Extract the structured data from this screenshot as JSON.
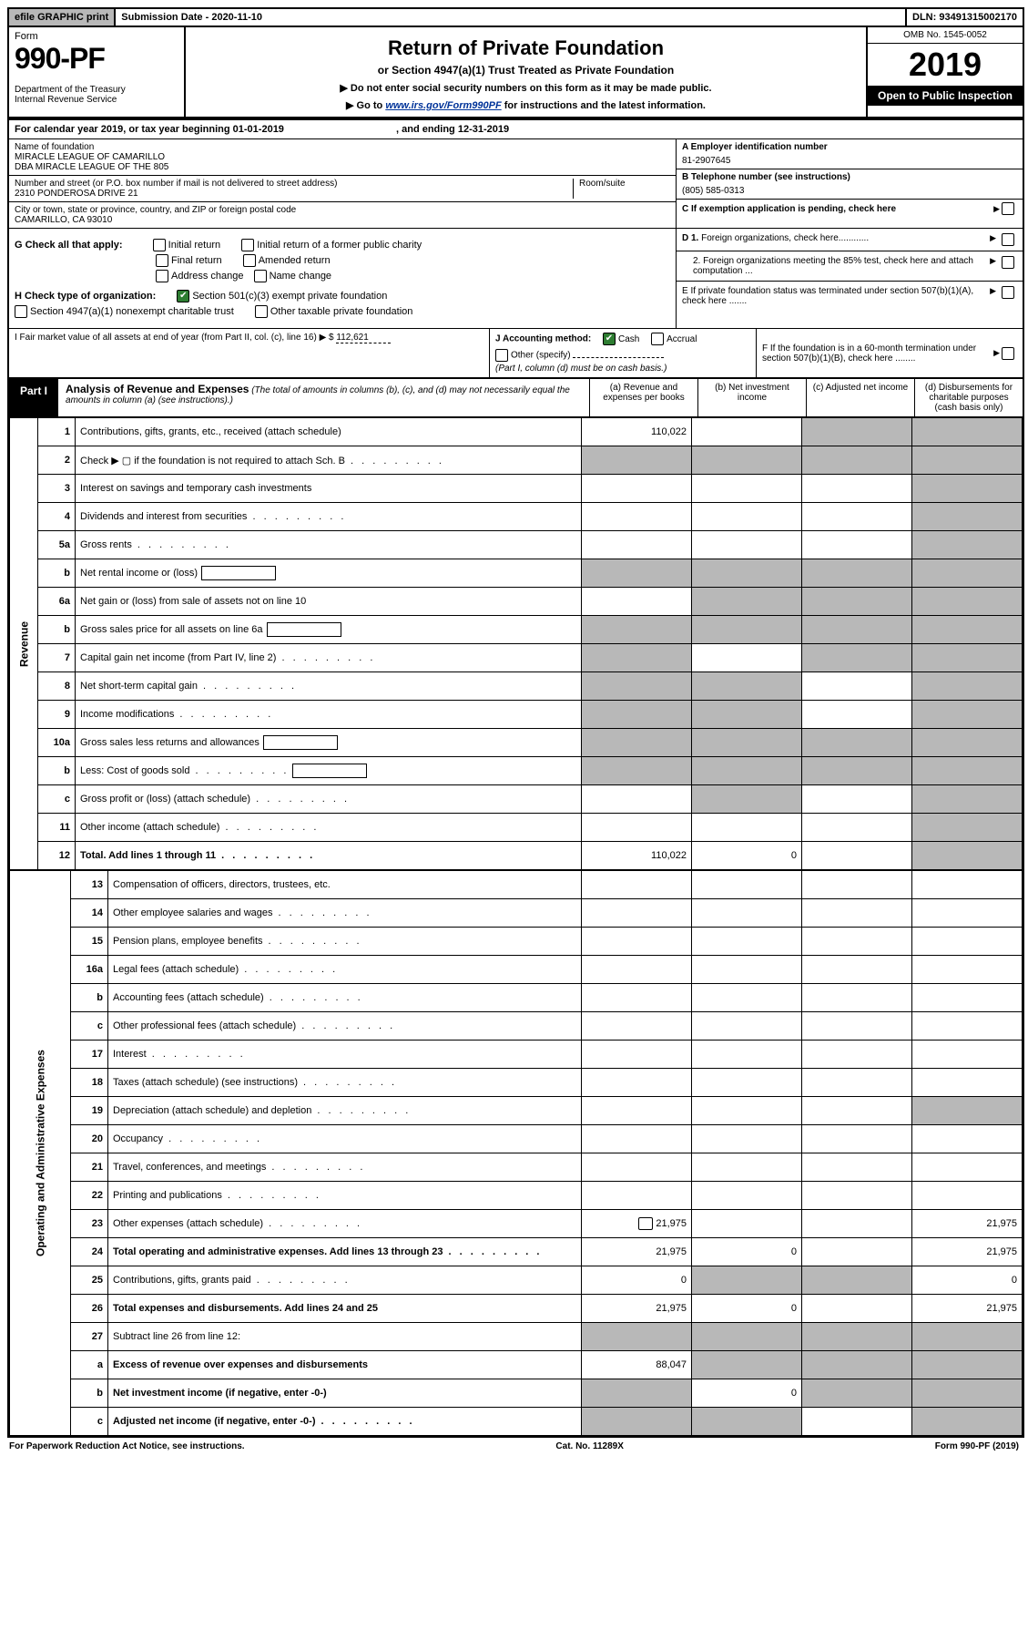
{
  "topbar": {
    "efile": "efile GRAPHIC print",
    "subdate_label": "Submission Date - ",
    "subdate": "2020-11-10",
    "dln_label": "DLN: ",
    "dln": "93491315002170"
  },
  "header": {
    "form_word": "Form",
    "form_number": "990-PF",
    "dept": "Department of the Treasury\nInternal Revenue Service",
    "title": "Return of Private Foundation",
    "subtitle": "or Section 4947(a)(1) Trust Treated as Private Foundation",
    "note1": "▶ Do not enter social security numbers on this form as it may be made public.",
    "note2_pre": "▶ Go to ",
    "note2_link": "www.irs.gov/Form990PF",
    "note2_post": " for instructions and the latest information.",
    "omb": "OMB No. 1545-0052",
    "year": "2019",
    "open": "Open to Public Inspection"
  },
  "cal": {
    "text_a": "For calendar year 2019, or tax year beginning ",
    "begin": "01-01-2019",
    "text_b": ", and ending ",
    "end": "12-31-2019"
  },
  "info": {
    "name_lbl": "Name of foundation",
    "name1": "MIRACLE LEAGUE OF CAMARILLO",
    "name2": "DBA MIRACLE LEAGUE OF THE 805",
    "addr_lbl": "Number and street (or P.O. box number if mail is not delivered to street address)",
    "addr": "2310 PONDEROSA DRIVE 21",
    "room_lbl": "Room/suite",
    "city_lbl": "City or town, state or province, country, and ZIP or foreign postal code",
    "city": "CAMARILLO, CA  93010",
    "ein_lbl": "A Employer identification number",
    "ein": "81-2907645",
    "tel_lbl": "B Telephone number (see instructions)",
    "tel": "(805) 585-0313",
    "c_lbl": "C If exemption application is pending, check here"
  },
  "G": {
    "label": "G Check all that apply:",
    "opts": [
      "Initial return",
      "Initial return of a former public charity",
      "Final return",
      "Amended return",
      "Address change",
      "Name change"
    ]
  },
  "H": {
    "label": "H Check type of organization:",
    "opt1": "Section 501(c)(3) exempt private foundation",
    "opt2": "Section 4947(a)(1) nonexempt charitable trust",
    "opt3": "Other taxable private foundation"
  },
  "D": {
    "d1": "D 1. Foreign organizations, check here............",
    "d2": "2. Foreign organizations meeting the 85% test, check here and attach computation ..."
  },
  "E": "E  If private foundation status was terminated under section 507(b)(1)(A), check here .......",
  "F": "F  If the foundation is in a 60-month termination under section 507(b)(1)(B), check here ........",
  "I": {
    "label": "I Fair market value of all assets at end of year (from Part II, col. (c), line 16) ▶ $",
    "value": "112,621"
  },
  "J": {
    "label": "J Accounting method:",
    "cash": "Cash",
    "accrual": "Accrual",
    "other": "Other (specify)",
    "note": "(Part I, column (d) must be on cash basis.)"
  },
  "part1": {
    "tab": "Part I",
    "title": "Analysis of Revenue and Expenses",
    "note": "(The total of amounts in columns (b), (c), and (d) may not necessarily equal the amounts in column (a) (see instructions).)",
    "col_a": "(a)   Revenue and expenses per books",
    "col_b": "(b)  Net investment income",
    "col_c": "(c)  Adjusted net income",
    "col_d": "(d)  Disbursements for charitable purposes (cash basis only)"
  },
  "side_rev": "Revenue",
  "side_exp": "Operating and Administrative Expenses",
  "rows": [
    {
      "n": "1",
      "d": "Contributions, gifts, grants, etc., received (attach schedule)",
      "a": "110,022",
      "b": "",
      "c": "shade",
      "dd": "shade"
    },
    {
      "n": "2",
      "d": "Check ▶ ▢ if the foundation is not required to attach Sch. B",
      "a": "shade",
      "b": "shade",
      "c": "shade",
      "dd": "shade",
      "dots": true
    },
    {
      "n": "3",
      "d": "Interest on savings and temporary cash investments",
      "a": "",
      "b": "",
      "c": "",
      "dd": "shade"
    },
    {
      "n": "4",
      "d": "Dividends and interest from securities",
      "a": "",
      "b": "",
      "c": "",
      "dd": "shade",
      "dots": true
    },
    {
      "n": "5a",
      "d": "Gross rents",
      "a": "",
      "b": "",
      "c": "",
      "dd": "shade",
      "dots": true
    },
    {
      "n": "b",
      "d": "Net rental income or (loss)",
      "a": "shade",
      "b": "shade",
      "c": "shade",
      "dd": "shade",
      "box": true
    },
    {
      "n": "6a",
      "d": "Net gain or (loss) from sale of assets not on line 10",
      "a": "",
      "b": "shade",
      "c": "shade",
      "dd": "shade"
    },
    {
      "n": "b",
      "d": "Gross sales price for all assets on line 6a",
      "a": "shade",
      "b": "shade",
      "c": "shade",
      "dd": "shade",
      "box": true
    },
    {
      "n": "7",
      "d": "Capital gain net income (from Part IV, line 2)",
      "a": "shade",
      "b": "",
      "c": "shade",
      "dd": "shade",
      "dots": true
    },
    {
      "n": "8",
      "d": "Net short-term capital gain",
      "a": "shade",
      "b": "shade",
      "c": "",
      "dd": "shade",
      "dots": true
    },
    {
      "n": "9",
      "d": "Income modifications",
      "a": "shade",
      "b": "shade",
      "c": "",
      "dd": "shade",
      "dots": true
    },
    {
      "n": "10a",
      "d": "Gross sales less returns and allowances",
      "a": "shade",
      "b": "shade",
      "c": "shade",
      "dd": "shade",
      "box": true
    },
    {
      "n": "b",
      "d": "Less: Cost of goods sold",
      "a": "shade",
      "b": "shade",
      "c": "shade",
      "dd": "shade",
      "dots": true,
      "box": true
    },
    {
      "n": "c",
      "d": "Gross profit or (loss) (attach schedule)",
      "a": "",
      "b": "shade",
      "c": "",
      "dd": "shade",
      "dots": true
    },
    {
      "n": "11",
      "d": "Other income (attach schedule)",
      "a": "",
      "b": "",
      "c": "",
      "dd": "shade",
      "dots": true
    },
    {
      "n": "12",
      "d": "Total. Add lines 1 through 11",
      "a": "110,022",
      "b": "0",
      "c": "",
      "dd": "shade",
      "bold": true,
      "dots": true
    }
  ],
  "exp_rows": [
    {
      "n": "13",
      "d": "Compensation of officers, directors, trustees, etc.",
      "a": "",
      "b": "",
      "c": "",
      "dd": ""
    },
    {
      "n": "14",
      "d": "Other employee salaries and wages",
      "a": "",
      "b": "",
      "c": "",
      "dd": "",
      "dots": true
    },
    {
      "n": "15",
      "d": "Pension plans, employee benefits",
      "a": "",
      "b": "",
      "c": "",
      "dd": "",
      "dots": true
    },
    {
      "n": "16a",
      "d": "Legal fees (attach schedule)",
      "a": "",
      "b": "",
      "c": "",
      "dd": "",
      "dots": true
    },
    {
      "n": "b",
      "d": "Accounting fees (attach schedule)",
      "a": "",
      "b": "",
      "c": "",
      "dd": "",
      "dots": true
    },
    {
      "n": "c",
      "d": "Other professional fees (attach schedule)",
      "a": "",
      "b": "",
      "c": "",
      "dd": "",
      "dots": true
    },
    {
      "n": "17",
      "d": "Interest",
      "a": "",
      "b": "",
      "c": "",
      "dd": "",
      "dots": true
    },
    {
      "n": "18",
      "d": "Taxes (attach schedule) (see instructions)",
      "a": "",
      "b": "",
      "c": "",
      "dd": "",
      "dots": true
    },
    {
      "n": "19",
      "d": "Depreciation (attach schedule) and depletion",
      "a": "",
      "b": "",
      "c": "",
      "dd": "shade",
      "dots": true
    },
    {
      "n": "20",
      "d": "Occupancy",
      "a": "",
      "b": "",
      "c": "",
      "dd": "",
      "dots": true
    },
    {
      "n": "21",
      "d": "Travel, conferences, and meetings",
      "a": "",
      "b": "",
      "c": "",
      "dd": "",
      "dots": true
    },
    {
      "n": "22",
      "d": "Printing and publications",
      "a": "",
      "b": "",
      "c": "",
      "dd": "",
      "dots": true
    },
    {
      "n": "23",
      "d": "Other expenses (attach schedule)",
      "a": "21,975",
      "b": "",
      "c": "",
      "dd": "21,975",
      "dots": true,
      "icon": true
    },
    {
      "n": "24",
      "d": "Total operating and administrative expenses. Add lines 13 through 23",
      "a": "21,975",
      "b": "0",
      "c": "",
      "dd": "21,975",
      "bold": true,
      "dots": true
    },
    {
      "n": "25",
      "d": "Contributions, gifts, grants paid",
      "a": "0",
      "b": "shade",
      "c": "shade",
      "dd": "0",
      "dots": true
    },
    {
      "n": "26",
      "d": "Total expenses and disbursements. Add lines 24 and 25",
      "a": "21,975",
      "b": "0",
      "c": "",
      "dd": "21,975",
      "bold": true
    },
    {
      "n": "27",
      "d": "Subtract line 26 from line 12:",
      "a": "shade",
      "b": "shade",
      "c": "shade",
      "dd": "shade"
    },
    {
      "n": "a",
      "d": "Excess of revenue over expenses and disbursements",
      "a": "88,047",
      "b": "shade",
      "c": "shade",
      "dd": "shade",
      "bold": true
    },
    {
      "n": "b",
      "d": "Net investment income (if negative, enter -0-)",
      "a": "shade",
      "b": "0",
      "c": "shade",
      "dd": "shade",
      "bold": true
    },
    {
      "n": "c",
      "d": "Adjusted net income (if negative, enter -0-)",
      "a": "shade",
      "b": "shade",
      "c": "",
      "dd": "shade",
      "bold": true,
      "dots": true
    }
  ],
  "footer": {
    "left": "For Paperwork Reduction Act Notice, see instructions.",
    "mid": "Cat. No. 11289X",
    "right": "Form 990-PF (2019)"
  }
}
